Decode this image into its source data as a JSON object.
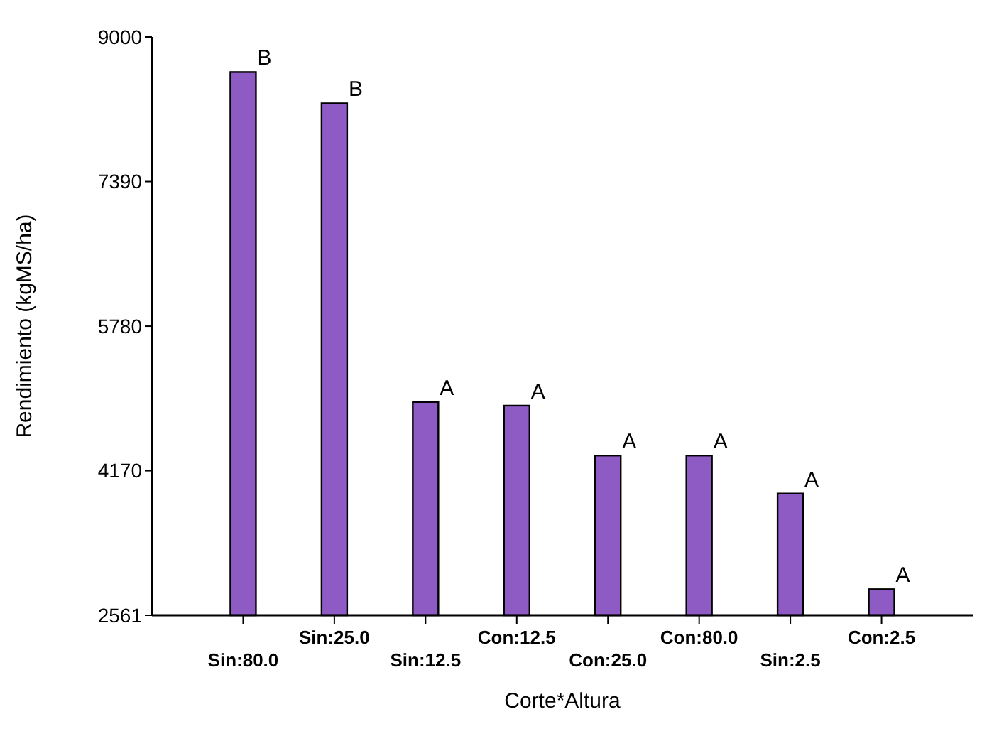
{
  "chart_data": {
    "type": "bar",
    "xlabel": "Corte*Altura",
    "ylabel": "Rendimiento (kgMS/ha)",
    "categories": [
      "Sin:80.0",
      "Sin:25.0",
      "Sin:12.5",
      "Con:12.5",
      "Con:25.0",
      "Con:80.0",
      "Sin:2.5",
      "Con:2.5"
    ],
    "values": [
      8609,
      8261,
      4936,
      4895,
      4339,
      4339,
      3916,
      2851
    ],
    "color": "#8e5bc4",
    "ylim": [
      2561,
      9000
    ],
    "yticks": [
      2561,
      4170,
      5780,
      7390,
      9000
    ],
    "grid": false,
    "annotations": [
      {
        "text": "B",
        "x": "Sin:80.0",
        "y": 8609
      },
      {
        "text": "B",
        "x": "Sin:25.0",
        "y": 8261
      },
      {
        "text": "A",
        "x": "Sin:12.5",
        "y": 4936
      },
      {
        "text": "A",
        "x": "Con:12.5",
        "y": 4895
      },
      {
        "text": "A",
        "x": "Con:25.0",
        "y": 4339
      },
      {
        "text": "A",
        "x": "Con:80.0",
        "y": 4339
      },
      {
        "text": "A",
        "x": "Sin:2.5",
        "y": 3916
      },
      {
        "text": "A",
        "x": "Con:2.5",
        "y": 2851
      }
    ]
  }
}
